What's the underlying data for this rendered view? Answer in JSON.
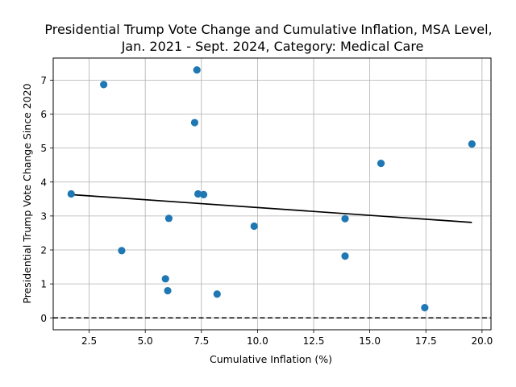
{
  "chart_data": {
    "type": "scatter",
    "title_lines": [
      "Presidential Trump Vote Change and Cumulative Inflation, MSA Level,",
      "Jan. 2021 - Sept. 2024, Category: Medical Care"
    ],
    "xlabel": "Cumulative Inflation (%)",
    "ylabel": "Presidential Trump Vote Change Since 2020",
    "xlim": [
      0.9,
      20.4
    ],
    "ylim": [
      -0.35,
      7.65
    ],
    "xticks": [
      2.5,
      5.0,
      7.5,
      10.0,
      12.5,
      15.0,
      17.5,
      20.0
    ],
    "xtick_labels": [
      "2.5",
      "5.0",
      "7.5",
      "10.0",
      "12.5",
      "15.0",
      "17.5",
      "20.0"
    ],
    "yticks": [
      0,
      1,
      2,
      3,
      4,
      5,
      6,
      7
    ],
    "ytick_labels": [
      "0",
      "1",
      "2",
      "3",
      "4",
      "5",
      "6",
      "7"
    ],
    "grid": true,
    "points": [
      {
        "x": 1.7,
        "y": 3.65
      },
      {
        "x": 3.15,
        "y": 6.87
      },
      {
        "x": 3.95,
        "y": 1.98
      },
      {
        "x": 5.9,
        "y": 1.15
      },
      {
        "x": 6.0,
        "y": 0.8
      },
      {
        "x": 6.05,
        "y": 2.93
      },
      {
        "x": 7.2,
        "y": 5.75
      },
      {
        "x": 7.3,
        "y": 7.3
      },
      {
        "x": 7.35,
        "y": 3.65
      },
      {
        "x": 7.6,
        "y": 3.63
      },
      {
        "x": 8.2,
        "y": 0.7
      },
      {
        "x": 9.85,
        "y": 2.7
      },
      {
        "x": 13.9,
        "y": 2.92
      },
      {
        "x": 13.9,
        "y": 1.82
      },
      {
        "x": 15.5,
        "y": 4.55
      },
      {
        "x": 17.45,
        "y": 0.3
      },
      {
        "x": 19.55,
        "y": 5.12
      }
    ],
    "trend_line": {
      "x": [
        1.7,
        19.55
      ],
      "y": [
        3.63,
        2.81
      ]
    },
    "reference_line": {
      "y": 0,
      "style": "dashed"
    },
    "colors": {
      "points": "#1f77b4",
      "trend": "#000000",
      "reference": "#000000",
      "grid": "#b0b0b0"
    }
  }
}
